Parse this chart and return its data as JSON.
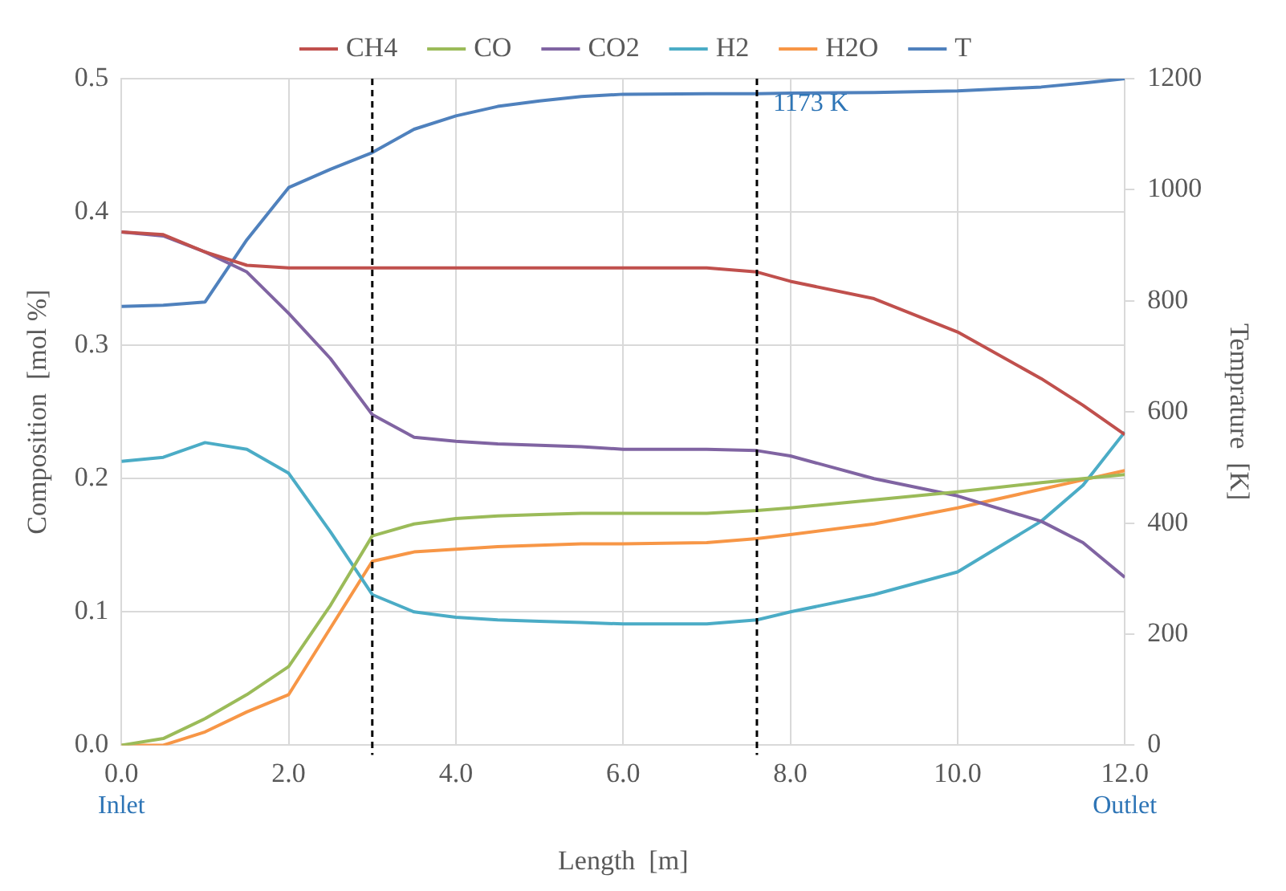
{
  "chart_data": {
    "type": "line",
    "xlabel": "Length  [m]",
    "ylabel": "Composition  [mol %]",
    "y2label": "Temprature  [K]",
    "x": [
      0,
      0.5,
      1,
      1.5,
      2,
      2.5,
      3,
      3.5,
      4,
      4.5,
      5,
      5.5,
      6,
      7,
      7.6,
      8,
      9,
      10,
      11,
      11.5,
      12
    ],
    "series": [
      {
        "name": "CH4",
        "color": "#c0504d",
        "values": [
          0.385,
          0.383,
          0.37,
          0.36,
          0.358,
          0.358,
          0.358,
          0.358,
          0.358,
          0.358,
          0.358,
          0.358,
          0.358,
          0.358,
          0.355,
          0.348,
          0.335,
          0.31,
          0.275,
          0.255,
          0.233
        ]
      },
      {
        "name": "CO",
        "color": "#9bbb59",
        "values": [
          0,
          0.005,
          0.02,
          0.038,
          0.059,
          0.105,
          0.157,
          0.166,
          0.17,
          0.172,
          0.173,
          0.174,
          0.174,
          0.174,
          0.176,
          0.178,
          0.184,
          0.19,
          0.197,
          0.2,
          0.203
        ]
      },
      {
        "name": "CO2",
        "color": "#8064a2",
        "values": [
          0.385,
          0.382,
          0.37,
          0.355,
          0.324,
          0.29,
          0.248,
          0.231,
          0.228,
          0.226,
          0.225,
          0.224,
          0.222,
          0.222,
          0.221,
          0.217,
          0.2,
          0.187,
          0.168,
          0.152,
          0.126
        ]
      },
      {
        "name": "H2",
        "color": "#4bacc6",
        "values": [
          0.213,
          0.216,
          0.227,
          0.222,
          0.204,
          0.16,
          0.113,
          0.1,
          0.096,
          0.094,
          0.093,
          0.092,
          0.091,
          0.091,
          0.094,
          0.1,
          0.113,
          0.13,
          0.168,
          0.195,
          0.235
        ]
      },
      {
        "name": "H2O",
        "color": "#f79646",
        "values": [
          0,
          0,
          0.01,
          0.025,
          0.038,
          0.088,
          0.138,
          0.145,
          0.147,
          0.149,
          0.15,
          0.151,
          0.151,
          0.152,
          0.155,
          0.158,
          0.166,
          0.178,
          0.192,
          0.199,
          0.206
        ]
      },
      {
        "name": "T",
        "color": "#4f81bd",
        "axis": "y2",
        "values": [
          790,
          792,
          798,
          910,
          1004,
          1037,
          1067,
          1109,
          1133,
          1150,
          1160,
          1168,
          1172,
          1173,
          1173,
          1174,
          1175,
          1178,
          1185,
          1192,
          1200
        ]
      }
    ],
    "xlim": [
      0,
      12
    ],
    "xticks": [
      {
        "value": 0,
        "label": "0.0"
      },
      {
        "value": 2,
        "label": "2.0"
      },
      {
        "value": 4,
        "label": "4.0"
      },
      {
        "value": 6,
        "label": "6.0"
      },
      {
        "value": 8,
        "label": "8.0"
      },
      {
        "value": 10,
        "label": "10.0"
      },
      {
        "value": 12,
        "label": "12.0"
      }
    ],
    "ylim": [
      0,
      0.5
    ],
    "yticks": [
      {
        "value": 0,
        "label": "0.0"
      },
      0.1,
      0.2,
      0.3,
      0.4,
      0.5
    ],
    "y2lim": [
      0,
      1200
    ],
    "y2ticks": [
      0,
      200,
      400,
      600,
      800,
      1000,
      1200
    ],
    "ref_lines": [
      {
        "axis": "x",
        "value": 3,
        "color": "#000000",
        "line_style": "dashed"
      },
      {
        "axis": "x",
        "value": 7.6,
        "color": "#000000",
        "line_style": "dashed"
      }
    ],
    "annotations": [
      "1173 K",
      "Inlet",
      "Outlet"
    ],
    "grid": true,
    "legend": "top",
    "marker": "none",
    "line_style": "solid"
  }
}
